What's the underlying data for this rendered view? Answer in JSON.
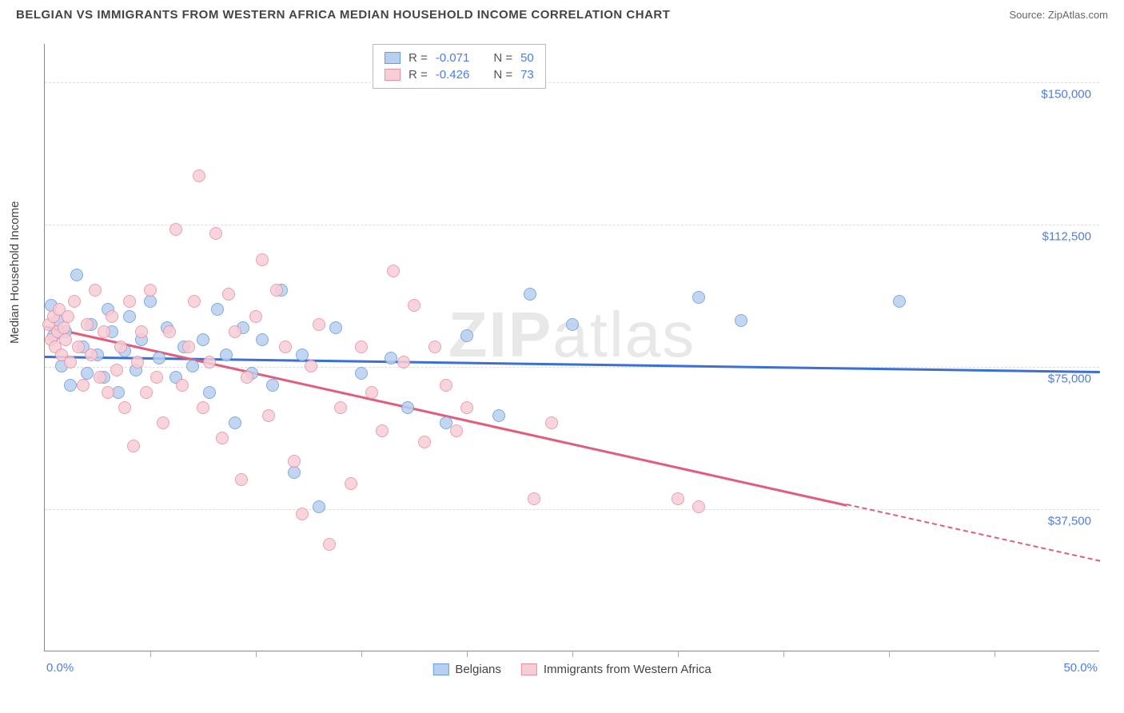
{
  "header": {
    "title": "BELGIAN VS IMMIGRANTS FROM WESTERN AFRICA MEDIAN HOUSEHOLD INCOME CORRELATION CHART",
    "source": "Source: ZipAtlas.com"
  },
  "watermark": {
    "bold": "ZIP",
    "light": "atlas"
  },
  "chart": {
    "type": "scatter",
    "y_label": "Median Household Income",
    "background_color": "#ffffff",
    "grid_color": "#dddddd",
    "axis_color": "#888888",
    "xlim": [
      0,
      50
    ],
    "ylim": [
      0,
      160000
    ],
    "y_ticks": [
      {
        "value": 37500,
        "label": "$37,500"
      },
      {
        "value": 75000,
        "label": "$75,000"
      },
      {
        "value": 112500,
        "label": "$112,500"
      },
      {
        "value": 150000,
        "label": "$150,000"
      }
    ],
    "x_ticks_minor": [
      5,
      10,
      15,
      20,
      25,
      30,
      35,
      40,
      45
    ],
    "x_tick_labels": [
      {
        "value": 0,
        "label": "0.0%",
        "align": "left"
      },
      {
        "value": 50,
        "label": "50.0%",
        "align": "right"
      }
    ],
    "marker_radius": 8,
    "marker_border_width": 1.5,
    "series": [
      {
        "name": "Belgians",
        "fill_color": "#b8d0f0",
        "border_color": "#6a9de0",
        "line_color": "#3a6fd8",
        "R": "-0.071",
        "N": "50",
        "reg_start": {
          "x": 0,
          "y": 78000
        },
        "reg_end": {
          "x": 50,
          "y": 74000
        },
        "reg_dash_from_x": null,
        "points": [
          [
            0.3,
            91000
          ],
          [
            0.4,
            83000
          ],
          [
            0.6,
            87000
          ],
          [
            0.8,
            75000
          ],
          [
            1.0,
            84000
          ],
          [
            1.2,
            70000
          ],
          [
            1.5,
            99000
          ],
          [
            1.8,
            80000
          ],
          [
            2.0,
            73000
          ],
          [
            2.2,
            86000
          ],
          [
            2.5,
            78000
          ],
          [
            2.8,
            72000
          ],
          [
            3.0,
            90000
          ],
          [
            3.2,
            84000
          ],
          [
            3.5,
            68000
          ],
          [
            3.8,
            79000
          ],
          [
            4.0,
            88000
          ],
          [
            4.3,
            74000
          ],
          [
            4.6,
            82000
          ],
          [
            5.0,
            92000
          ],
          [
            5.4,
            77000
          ],
          [
            5.8,
            85000
          ],
          [
            6.2,
            72000
          ],
          [
            6.6,
            80000
          ],
          [
            7.0,
            75000
          ],
          [
            7.5,
            82000
          ],
          [
            7.8,
            68000
          ],
          [
            8.2,
            90000
          ],
          [
            8.6,
            78000
          ],
          [
            9.0,
            60000
          ],
          [
            9.4,
            85000
          ],
          [
            9.8,
            73000
          ],
          [
            10.3,
            82000
          ],
          [
            10.8,
            70000
          ],
          [
            11.2,
            95000
          ],
          [
            11.8,
            47000
          ],
          [
            12.2,
            78000
          ],
          [
            13.0,
            38000
          ],
          [
            13.8,
            85000
          ],
          [
            15.0,
            73000
          ],
          [
            16.4,
            77000
          ],
          [
            17.2,
            64000
          ],
          [
            19.0,
            60000
          ],
          [
            20.0,
            83000
          ],
          [
            21.5,
            62000
          ],
          [
            23.0,
            94000
          ],
          [
            25.0,
            86000
          ],
          [
            31.0,
            93000
          ],
          [
            33.0,
            87000
          ],
          [
            40.5,
            92000
          ]
        ]
      },
      {
        "name": "Immigrants from Western Africa",
        "fill_color": "#f7cdd6",
        "border_color": "#e891a3",
        "line_color": "#e35c7c",
        "R": "-0.426",
        "N": "73",
        "reg_start": {
          "x": 0,
          "y": 86000
        },
        "reg_end": {
          "x": 50,
          "y": 24000
        },
        "reg_dash_from_x": 38,
        "points": [
          [
            0.2,
            86000
          ],
          [
            0.3,
            82000
          ],
          [
            0.4,
            88000
          ],
          [
            0.5,
            80000
          ],
          [
            0.6,
            84000
          ],
          [
            0.7,
            90000
          ],
          [
            0.8,
            78000
          ],
          [
            0.9,
            85000
          ],
          [
            1.0,
            82000
          ],
          [
            1.1,
            88000
          ],
          [
            1.2,
            76000
          ],
          [
            1.4,
            92000
          ],
          [
            1.6,
            80000
          ],
          [
            1.8,
            70000
          ],
          [
            2.0,
            86000
          ],
          [
            2.2,
            78000
          ],
          [
            2.4,
            95000
          ],
          [
            2.6,
            72000
          ],
          [
            2.8,
            84000
          ],
          [
            3.0,
            68000
          ],
          [
            3.2,
            88000
          ],
          [
            3.4,
            74000
          ],
          [
            3.6,
            80000
          ],
          [
            3.8,
            64000
          ],
          [
            4.0,
            92000
          ],
          [
            4.2,
            54000
          ],
          [
            4.4,
            76000
          ],
          [
            4.6,
            84000
          ],
          [
            4.8,
            68000
          ],
          [
            5.0,
            95000
          ],
          [
            5.3,
            72000
          ],
          [
            5.6,
            60000
          ],
          [
            5.9,
            84000
          ],
          [
            6.2,
            111000
          ],
          [
            6.5,
            70000
          ],
          [
            6.8,
            80000
          ],
          [
            7.1,
            92000
          ],
          [
            7.3,
            125000
          ],
          [
            7.5,
            64000
          ],
          [
            7.8,
            76000
          ],
          [
            8.1,
            110000
          ],
          [
            8.4,
            56000
          ],
          [
            8.7,
            94000
          ],
          [
            9.0,
            84000
          ],
          [
            9.3,
            45000
          ],
          [
            9.6,
            72000
          ],
          [
            10.0,
            88000
          ],
          [
            10.3,
            103000
          ],
          [
            10.6,
            62000
          ],
          [
            11.0,
            95000
          ],
          [
            11.4,
            80000
          ],
          [
            11.8,
            50000
          ],
          [
            12.2,
            36000
          ],
          [
            12.6,
            75000
          ],
          [
            13.0,
            86000
          ],
          [
            13.5,
            28000
          ],
          [
            14.0,
            64000
          ],
          [
            14.5,
            44000
          ],
          [
            15.0,
            80000
          ],
          [
            15.5,
            68000
          ],
          [
            16.0,
            58000
          ],
          [
            16.5,
            100000
          ],
          [
            17.0,
            76000
          ],
          [
            17.5,
            91000
          ],
          [
            18.0,
            55000
          ],
          [
            18.5,
            80000
          ],
          [
            19.0,
            70000
          ],
          [
            19.5,
            58000
          ],
          [
            20.0,
            64000
          ],
          [
            23.2,
            40000
          ],
          [
            24.0,
            60000
          ],
          [
            30.0,
            40000
          ],
          [
            31.0,
            38000
          ]
        ]
      }
    ],
    "stats_box": {
      "R_label": "R =",
      "N_label": "N ="
    },
    "legend": {
      "items": [
        "Belgians",
        "Immigrants from Western Africa"
      ]
    }
  }
}
